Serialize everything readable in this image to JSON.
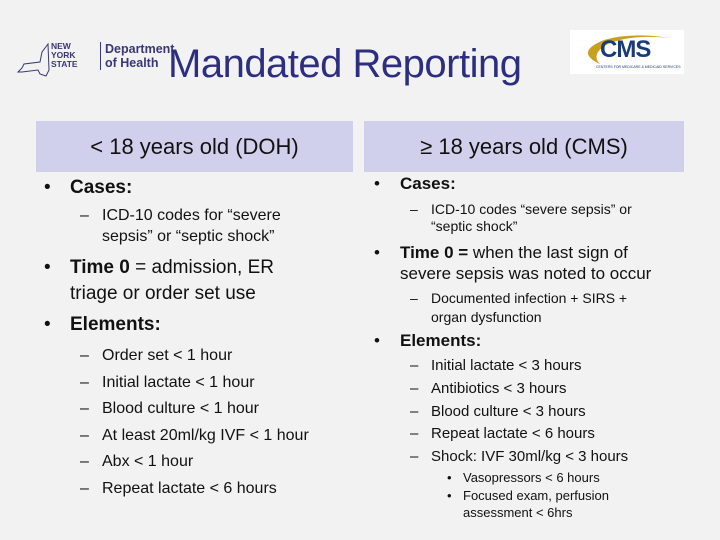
{
  "header": {
    "title": "Mandated Reporting",
    "nys_logo": {
      "state_lines": [
        "NEW",
        "YORK",
        "STATE"
      ],
      "dept_lines": [
        "Department",
        "of Health"
      ]
    },
    "cms_logo": {
      "word": "CMS",
      "subtitle": "CENTERS FOR MEDICARE & MEDICAID SERVICES"
    }
  },
  "left": {
    "heading": "< 18 years old (DOH)",
    "cases_label": "Cases:",
    "cases_sub": [
      "ICD-10 codes for “severe",
      "sepsis” or “septic shock”"
    ],
    "time0_label": "Time 0",
    "time0_text": [
      " = admission, ER",
      "triage or order set use"
    ],
    "elements_label": "Elements:",
    "elements": [
      "Order set < 1 hour",
      "Initial lactate < 1 hour",
      "Blood culture < 1 hour",
      "At least 20ml/kg IVF < 1 hour",
      "Abx < 1 hour",
      "Repeat lactate < 6 hours"
    ]
  },
  "right": {
    "heading": "≥ 18 years old (CMS)",
    "cases_label": "Cases:",
    "cases_sub": [
      "ICD-10 codes “severe sepsis” or",
      "“septic shock”"
    ],
    "time0_label": "Time 0 =",
    "time0_text": [
      " when the last sign of",
      "severe sepsis was noted to occur"
    ],
    "time0_sub": [
      "Documented infection + SIRS +",
      "organ dysfunction"
    ],
    "elements_label": "Elements:",
    "elements": [
      "Initial lactate < 3 hours",
      "Antibiotics < 3 hours",
      "Blood culture < 3 hours",
      "Repeat lactate < 6 hours",
      "Shock: IVF 30ml/kg < 3 hours"
    ],
    "shock_sub": [
      "Vasopressors < 6 hours",
      "Focused exam, perfusion",
      "assessment < 6hrs"
    ]
  }
}
